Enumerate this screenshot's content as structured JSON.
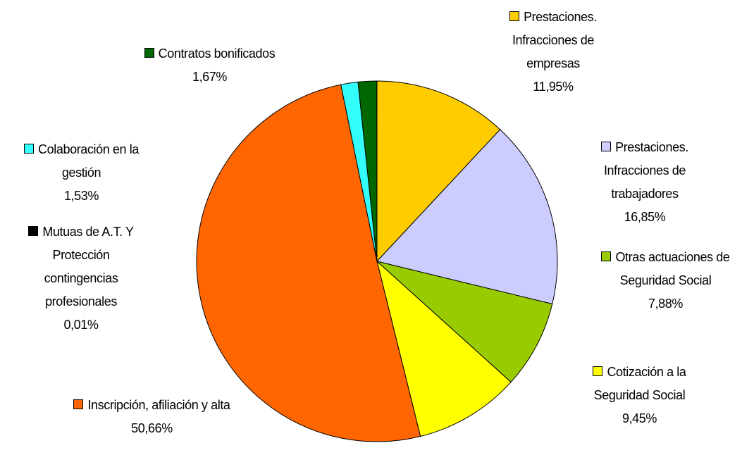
{
  "chart_data": {
    "type": "pie",
    "categories": [
      "Prestaciones. Infracciones de empresas",
      "Prestaciones. Infracciones de trabajadores",
      "Otras actuaciones de Seguridad Social",
      "Cotización a la Seguridad Social",
      "Inscripción, afiliación y alta",
      "Colaboración en la gestión",
      "Contratos bonificados",
      "Mutuas de A.T. Y Protección contingencias profesionales"
    ],
    "values": [
      11.95,
      16.85,
      7.88,
      9.45,
      50.66,
      1.53,
      1.67,
      0.01
    ],
    "value_labels": [
      "11,95%",
      "16,85%",
      "7,88%",
      "9,45%",
      "50,66%",
      "1,53%",
      "1,67%",
      "0,01%"
    ],
    "colors": [
      "#ffcc00",
      "#ccccff",
      "#99cc00",
      "#ffff00",
      "#ff6600",
      "#33ffff",
      "#006600",
      "#000000"
    ]
  }
}
